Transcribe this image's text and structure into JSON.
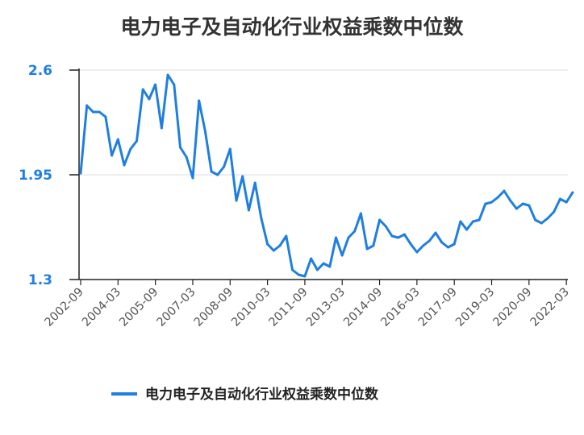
{
  "chart_data": {
    "type": "line",
    "title": "电力电子及自动化行业权益乘数中位数",
    "xlabel": "",
    "ylabel": "",
    "ylim": [
      1.3,
      2.6
    ],
    "yticks": [
      "1.3",
      "1.95",
      "2.6"
    ],
    "xticks": [
      "2002-09",
      "2004-03",
      "2005-09",
      "2007-03",
      "2008-09",
      "2010-03",
      "2011-09",
      "2013-03",
      "2014-09",
      "2016-03",
      "2017-09",
      "2019-03",
      "2020-09",
      "2022-03"
    ],
    "grid": true,
    "legend": "bottom-center",
    "series": [
      {
        "name": "电力电子及自动化行业权益乘数中位数",
        "color": "#1f7fe0",
        "values": [
          1.96,
          2.38,
          2.34,
          2.34,
          2.31,
          2.07,
          2.17,
          2.01,
          2.11,
          2.16,
          2.48,
          2.42,
          2.51,
          2.24,
          2.57,
          2.51,
          2.12,
          2.06,
          1.93,
          2.41,
          2.22,
          1.97,
          1.95,
          2.0,
          2.11,
          1.79,
          1.94,
          1.73,
          1.9,
          1.68,
          1.52,
          1.48,
          1.51,
          1.57,
          1.36,
          1.33,
          1.32,
          1.43,
          1.36,
          1.4,
          1.38,
          1.56,
          1.45,
          1.56,
          1.6,
          1.71,
          1.49,
          1.51,
          1.67,
          1.63,
          1.57,
          1.56,
          1.58,
          1.52,
          1.47,
          1.51,
          1.54,
          1.59,
          1.53,
          1.5,
          1.52,
          1.66,
          1.61,
          1.66,
          1.67,
          1.77,
          1.78,
          1.81,
          1.85,
          1.79,
          1.74,
          1.77,
          1.76,
          1.67,
          1.65,
          1.68,
          1.72,
          1.8,
          1.78,
          1.84
        ]
      }
    ]
  }
}
